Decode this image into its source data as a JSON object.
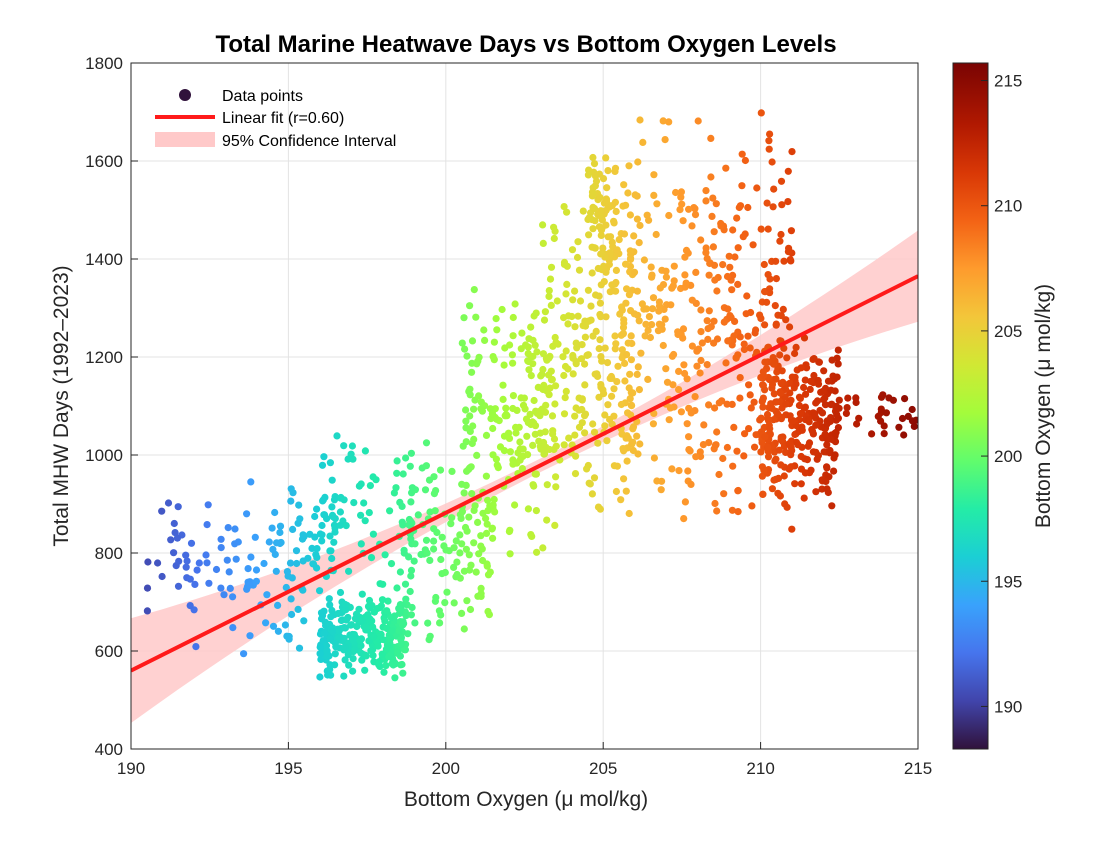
{
  "chart_data": {
    "type": "scatter",
    "title": "Total Marine Heatwave Days vs Bottom Oxygen Levels",
    "xlabel": "Bottom Oxygen (μ mol/kg)",
    "ylabel": "Total MHW Days (1992–2023)",
    "colorbar_label": "Bottom Oxygen (μ mol/kg)",
    "xlim": [
      190,
      215
    ],
    "ylim": [
      400,
      1800
    ],
    "x_ticks": [
      "190",
      "195",
      "200",
      "205",
      "210",
      "215"
    ],
    "y_ticks": [
      "400",
      "600",
      "800",
      "1000",
      "1200",
      "1400",
      "1600",
      "1800"
    ],
    "colorbar_lim": [
      188.3,
      215.7
    ],
    "colorbar_ticks": [
      "190",
      "195",
      "200",
      "205",
      "210",
      "215"
    ],
    "colormap": "turbo",
    "grid": true,
    "legend_position": "top-left",
    "legend": {
      "points_label": "Data points",
      "fit_label": "Linear fit (r=0.60)",
      "ci_label": "95% Confidence Interval"
    },
    "fit": {
      "r": 0.6,
      "intercept_at_xmin": 560,
      "value_at_xmax": 1365,
      "color": "#ff1a1a",
      "ci_color": "#ffc9c9"
    },
    "series": [
      {
        "name": "Data points",
        "clusters": [
          {
            "x_range": [
              190.5,
              194.5
            ],
            "y_range": [
              560,
              990
            ],
            "count": 70
          },
          {
            "x_range": [
              194.5,
              196.5
            ],
            "y_range": [
              580,
              1000
            ],
            "count": 80
          },
          {
            "x_range": [
              196.0,
              198.8
            ],
            "y_range": [
              540,
              720
            ],
            "count": 260
          },
          {
            "x_range": [
              196.0,
              199.5
            ],
            "y_range": [
              700,
              1080
            ],
            "count": 70
          },
          {
            "x_range": [
              198.5,
              201.5
            ],
            "y_range": [
              600,
              1020
            ],
            "count": 120
          },
          {
            "x_range": [
              200.5,
              203.5
            ],
            "y_range": [
              780,
              1350
            ],
            "count": 200
          },
          {
            "x_range": [
              203.0,
              206.0
            ],
            "y_range": [
              850,
              1550
            ],
            "count": 220
          },
          {
            "x_range": [
              204.5,
              205.5
            ],
            "y_range": [
              1350,
              1630
            ],
            "count": 70
          },
          {
            "x_range": [
              205.5,
              208.5
            ],
            "y_range": [
              820,
              1740
            ],
            "count": 200
          },
          {
            "x_range": [
              208.5,
              211.0
            ],
            "y_range": [
              800,
              1740
            ],
            "count": 180
          },
          {
            "x_range": [
              210.0,
              212.5
            ],
            "y_range": [
              880,
              1260
            ],
            "count": 260
          },
          {
            "x_range": [
              212.0,
              215.0
            ],
            "y_range": [
              1020,
              1140
            ],
            "count": 35
          }
        ]
      }
    ]
  }
}
